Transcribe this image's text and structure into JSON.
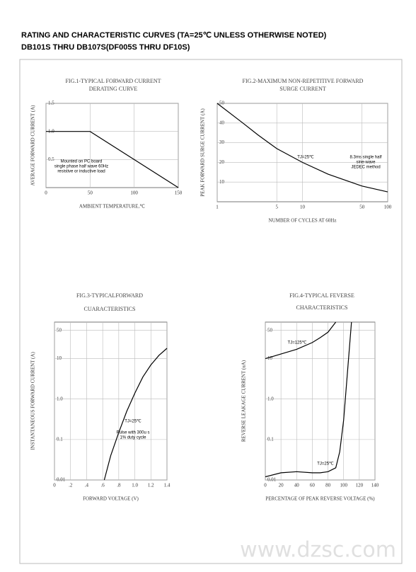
{
  "header": {
    "line1": "RATING AND CHARACTERISTIC CURVES (TA=25℃ UNLESS OTHERWISE NOTED)",
    "line2": "DB101S THRU DB107S(DF005S THRU DF10S)"
  },
  "watermark": "www.dzsc.com",
  "chart_data": [
    {
      "type": "line",
      "title": [
        "FIG.1-TYPICAL FORWARD CURRENT",
        "DERATING CURVE"
      ],
      "ylabel": "AVERAGE FORWARD CURRENT (A)",
      "xlabel": "AMBIENT TEMPERATURE,℃",
      "note": [
        "Mounted on PC board",
        "single phase half wave 60Hz",
        "resistive or inductive load"
      ],
      "x": [
        0,
        50,
        150
      ],
      "series": [
        {
          "color": "#000000",
          "values": [
            1.0,
            1.0,
            0
          ]
        }
      ],
      "xlim": [
        0,
        150
      ],
      "xticks": [
        0,
        50,
        100,
        150
      ],
      "ylim": [
        0,
        1.5
      ],
      "yticks": [
        {
          "value": 0.5,
          "label": "0.5"
        },
        {
          "value": 1.0,
          "label": "1.0"
        },
        {
          "value": 1.5,
          "label": "1.5"
        }
      ],
      "grid": true,
      "xlog": false,
      "ylog": false
    },
    {
      "type": "line",
      "title": [
        "FIG.2-MAXIMUM NON-REPETITIVE FORWARD",
        "SURGE CURRENT"
      ],
      "ylabel": "PEAK FORWARD SURGE CURRENT (A)",
      "xlabel": "NUMBER OF CYCLES AT 60Hz",
      "note": [
        "8.3ms single half",
        "sine-wave",
        "JEDEC method"
      ],
      "x": [
        1,
        2,
        3,
        5,
        10,
        20,
        50,
        100
      ],
      "series": [
        {
          "name": "TJ=25℃",
          "color": "#000000",
          "values": [
            50,
            40,
            34,
            27,
            20,
            14,
            8,
            5
          ]
        }
      ],
      "xlim": [
        1,
        100
      ],
      "xticks": [
        1,
        5,
        10,
        50,
        100
      ],
      "ylim": [
        0,
        50
      ],
      "yticks": [
        10,
        20,
        30,
        40,
        50
      ],
      "grid": true,
      "xlog": true,
      "ylog": false
    },
    {
      "type": "line",
      "title": [
        "FIG.3-TYPICALFORWARD",
        "CUARACTERISTICS"
      ],
      "ylabel": "INSTANTANEOUS FORWARD CURRENT (A)",
      "xlabel": "FORWARD VOLTAGE (V)",
      "note": [
        "Pulse with 300u s",
        "1% duty cycle"
      ],
      "x": [
        0.62,
        0.7,
        0.8,
        0.9,
        1.0,
        1.1,
        1.2,
        1.3,
        1.4
      ],
      "series": [
        {
          "name": "TJ=25℃",
          "color": "#000000",
          "values": [
            0.01,
            0.04,
            0.15,
            0.5,
            1.4,
            3.5,
            7,
            12,
            18
          ]
        }
      ],
      "xlim": [
        0,
        1.4
      ],
      "xticks": [
        0,
        {
          "value": 0.2,
          "label": ".2"
        },
        {
          "value": 0.4,
          "label": ".4"
        },
        {
          "value": 0.6,
          "label": ".6"
        },
        {
          "value": 0.8,
          "label": ".8"
        },
        {
          "value": 1.0,
          "label": "1.0"
        },
        {
          "value": 1.2,
          "label": "1.2"
        },
        {
          "value": 1.4,
          "label": "1.4"
        }
      ],
      "ylim": [
        0.01,
        80
      ],
      "yticks": [
        0.01,
        0.1,
        {
          "value": 1,
          "label": "1.0"
        },
        10,
        50
      ],
      "grid": true,
      "xlog": false,
      "ylog": true
    },
    {
      "type": "line",
      "title": [
        "FIG.4-TYPICAL FEVERSE",
        "CHARACTERISTICS"
      ],
      "ylabel": "REVERSE LEAKAGE CURRENT (uA)",
      "xlabel": "PERCENTAGE OF PEAK REVERSE VOLTAGE (%)",
      "x": [
        0,
        20,
        40,
        60,
        70,
        80,
        90,
        95,
        100,
        105,
        110
      ],
      "series": [
        {
          "name": "TJ=125℃",
          "color": "#000000",
          "values": [
            10,
            13,
            17,
            25,
            33,
            45,
            80,
            null,
            null,
            null,
            null
          ]
        },
        {
          "name": "TJ=25℃",
          "color": "#000000",
          "values": [
            0.012,
            0.015,
            0.016,
            0.015,
            0.015,
            0.016,
            0.02,
            0.05,
            0.3,
            5,
            80
          ]
        }
      ],
      "xlim": [
        0,
        140
      ],
      "xticks": [
        0,
        20,
        40,
        60,
        80,
        100,
        120,
        140
      ],
      "ylim": [
        0.01,
        80
      ],
      "yticks": [
        0.01,
        0.1,
        {
          "value": 1,
          "label": "1.0"
        },
        10,
        50
      ],
      "grid": true,
      "xlog": false,
      "ylog": true
    }
  ]
}
